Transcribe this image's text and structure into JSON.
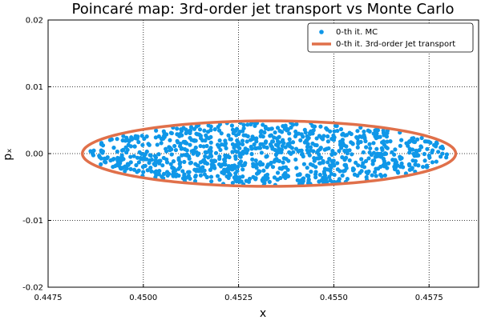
{
  "chart_data": {
    "type": "scatter",
    "title": "Poincaré map: 3rd-order jet transport vs Monte Carlo",
    "xlabel": "x",
    "ylabel": "pₓ",
    "xlim": [
      0.4475,
      0.4588
    ],
    "ylim": [
      -0.02,
      0.02
    ],
    "x_ticks": [
      "0.4475",
      "0.4500",
      "0.4525",
      "0.4550",
      "0.4575"
    ],
    "y_ticks": [
      "-0.02",
      "-0.01",
      "0.00",
      "0.01",
      "0.02"
    ],
    "grid": true,
    "legend_position": "top-right",
    "ellipse": {
      "center_x": 0.4533,
      "center_y": 0.0,
      "x_min": 0.4484,
      "x_max": 0.4582,
      "y_min": -0.0049,
      "y_max": 0.0049
    },
    "series": [
      {
        "name": "0-th it. MC",
        "type": "scatter",
        "color": "#0f97e8",
        "point_count": 1000
      },
      {
        "name": "0-th it. 3rd-order Jet transport",
        "type": "line",
        "color": "#e0704a"
      }
    ]
  }
}
